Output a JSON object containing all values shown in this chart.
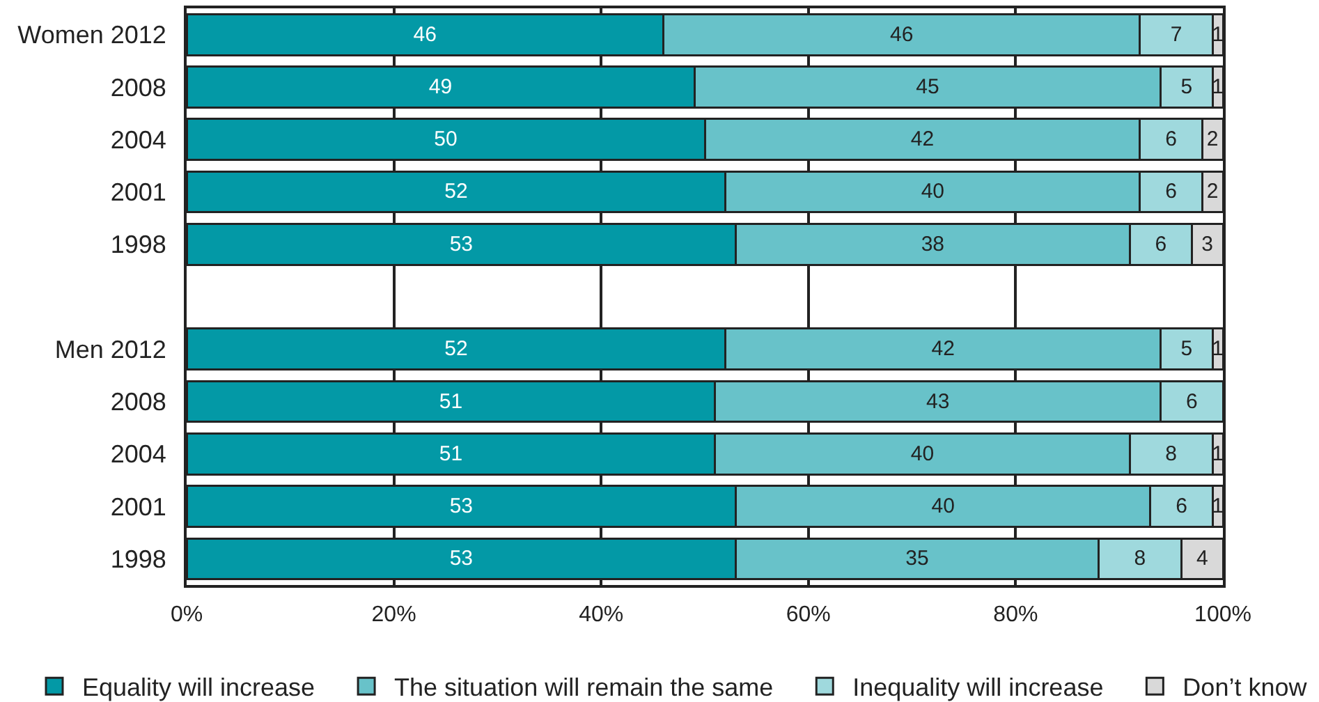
{
  "chart_data": {
    "type": "bar",
    "orientation": "horizontal",
    "stacked": true,
    "categories": [
      "Women 2012",
      "2008",
      "2004",
      "2001",
      "1998",
      null,
      "Men 2012",
      "2008",
      "2004",
      "2001",
      "1998"
    ],
    "series": [
      {
        "name": "Equality will increase",
        "color": "#0399a6",
        "values": [
          46,
          49,
          50,
          52,
          53,
          null,
          52,
          51,
          51,
          53,
          53
        ]
      },
      {
        "name": "The situation will remain the same",
        "color": "#68c2c9",
        "values": [
          46,
          45,
          42,
          40,
          38,
          null,
          42,
          43,
          40,
          40,
          35
        ]
      },
      {
        "name": "Inequality will increase",
        "color": "#9fd9dd",
        "values": [
          7,
          5,
          6,
          6,
          6,
          null,
          5,
          6,
          8,
          6,
          8
        ]
      },
      {
        "name": "Don’t know",
        "color": "#d9d9d9",
        "values": [
          1,
          1,
          2,
          2,
          3,
          null,
          1,
          null,
          1,
          1,
          4
        ]
      }
    ],
    "xlim": [
      0,
      100
    ],
    "xticks": [
      {
        "value": 0,
        "label": "0%"
      },
      {
        "value": 20,
        "label": "20%"
      },
      {
        "value": 40,
        "label": "40%"
      },
      {
        "value": 60,
        "label": "60%"
      },
      {
        "value": 80,
        "label": "80%"
      },
      {
        "value": 100,
        "label": "100%"
      }
    ],
    "grid": "x",
    "legend": "bottom",
    "data_labels": true
  }
}
